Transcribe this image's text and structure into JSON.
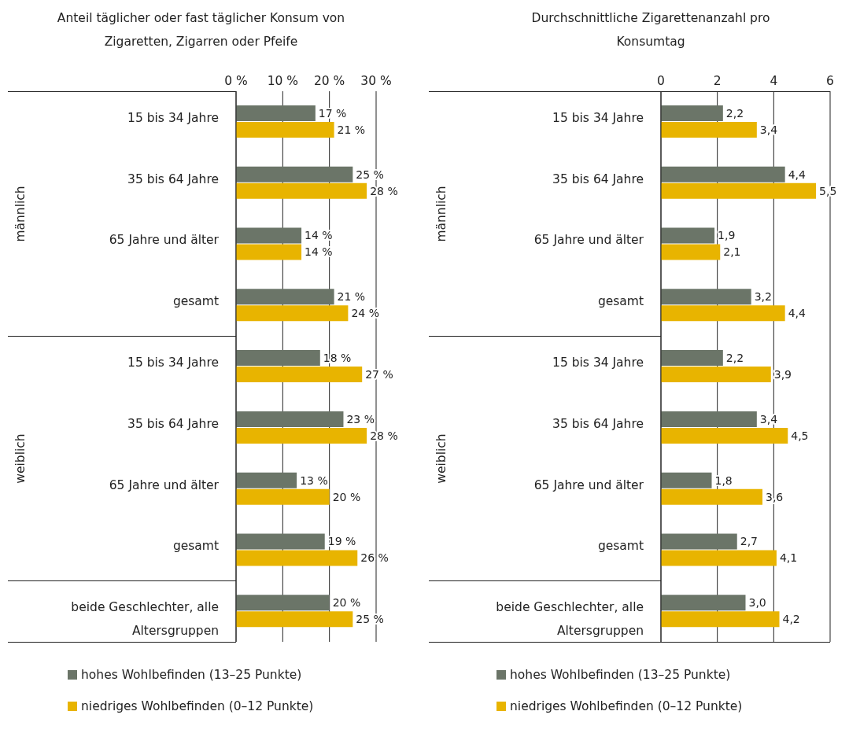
{
  "chart_data": [
    {
      "type": "bar",
      "orientation": "horizontal",
      "title": "Anteil täglicher oder fast täglicher Konsum von Zigaretten, Zigarren oder Pfeife",
      "categories": [
        "15 bis 34 Jahre",
        "35 bis 64 Jahre",
        "65 Jahre und älter",
        "gesamt",
        "15 bis 34 Jahre",
        "35 bis 64 Jahre",
        "65 Jahre und älter",
        "gesamt",
        "beide Geschlechter, alle Altersgruppen"
      ],
      "series": [
        {
          "name": "hohes Wohlbefinden (13–25 Punkte)",
          "color": "#6b7568",
          "values": [
            17,
            25,
            14,
            21,
            18,
            23,
            13,
            19,
            20
          ],
          "value_labels": [
            "17 %",
            "25 %",
            "14 %",
            "21 %",
            "18 %",
            "23 %",
            "13 %",
            "19 %",
            "20 %"
          ]
        },
        {
          "name": "niedriges Wohlbefinden (0–12 Punkte)",
          "color": "#e8b400",
          "values": [
            21,
            28,
            14,
            24,
            27,
            28,
            20,
            26,
            25
          ],
          "value_labels": [
            "21 %",
            "28 %",
            "14 %",
            "24 %",
            "27 %",
            "28 %",
            "20 %",
            "26 %",
            "25 %"
          ]
        }
      ],
      "annotations": [
        "männlich",
        "weiblich"
      ],
      "xlim": [
        0,
        30
      ],
      "xticks": [
        {
          "value": 0,
          "label": "0 %"
        },
        {
          "value": 10,
          "label": "10 %"
        },
        {
          "value": 20,
          "label": "20 %"
        },
        {
          "value": 30,
          "label": "30 %"
        }
      ],
      "grid": "x",
      "legend": "bottom"
    },
    {
      "type": "bar",
      "orientation": "horizontal",
      "title": "Durchschnittliche Zigarettenanzahl pro Konsumtag",
      "categories": [
        "15 bis 34 Jahre",
        "35 bis 64 Jahre",
        "65 Jahre und älter",
        "gesamt",
        "15 bis 34 Jahre",
        "35 bis 64 Jahre",
        "65 Jahre und älter",
        "gesamt",
        "beide Geschlechter, alle Altersgruppen"
      ],
      "series": [
        {
          "name": "hohes Wohlbefinden (13–25 Punkte)",
          "color": "#6b7568",
          "values": [
            2.2,
            4.4,
            1.9,
            3.2,
            2.2,
            3.4,
            1.8,
            2.7,
            3.0
          ],
          "value_labels": [
            "2,2",
            "4,4",
            "1,9",
            "3,2",
            "2,2",
            "3,4",
            "1,8",
            "2,7",
            "3,0"
          ]
        },
        {
          "name": "niedriges Wohlbefinden (0–12 Punkte)",
          "color": "#e8b400",
          "values": [
            3.4,
            5.5,
            2.1,
            4.4,
            3.9,
            4.5,
            3.6,
            4.1,
            4.2
          ],
          "value_labels": [
            "3,4",
            "5,5",
            "2,1",
            "4,4",
            "3,9",
            "4,5",
            "3,6",
            "4,1",
            "4,2"
          ]
        }
      ],
      "annotations": [
        "männlich",
        "weiblich"
      ],
      "xlim": [
        0,
        6
      ],
      "xticks": [
        0,
        2,
        4,
        6
      ],
      "grid": "x",
      "legend": "bottom"
    }
  ]
}
